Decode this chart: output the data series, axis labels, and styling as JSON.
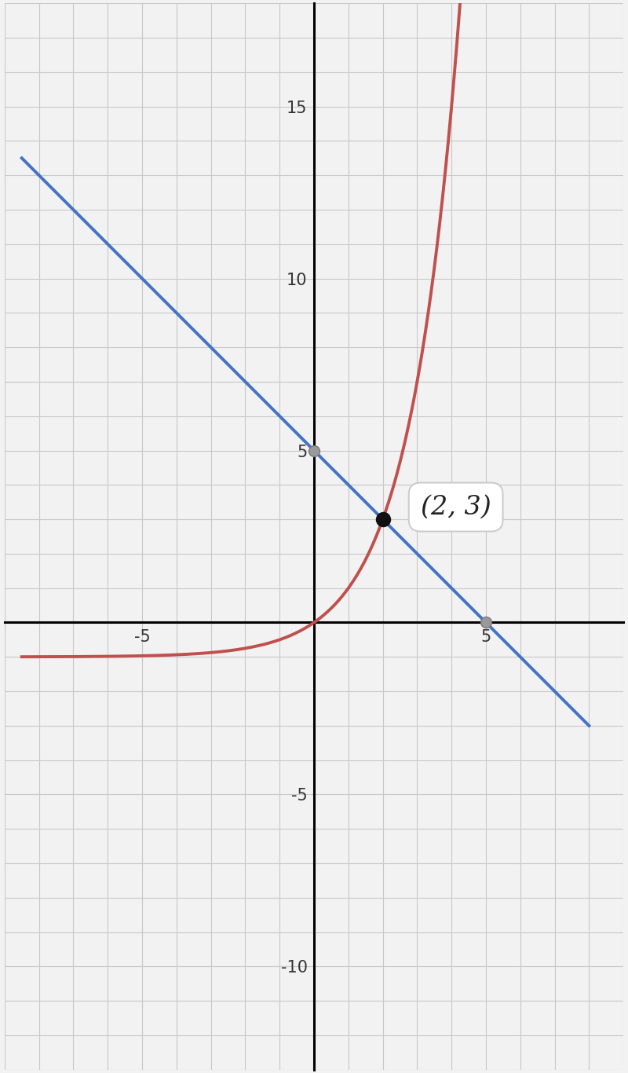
{
  "f_color": "#c0504d",
  "g_color": "#4472c4",
  "intersection_x": 2,
  "intersection_y": 3,
  "intersection_label": "(2, 3)",
  "g_yintercept_x": 0,
  "g_yintercept_y": 5,
  "g_xintercept_x": 5,
  "g_xintercept_y": 0,
  "xlim": [
    -8.5,
    8.0
  ],
  "ylim": [
    -12.5,
    17.5
  ],
  "xticks": [
    -5,
    0,
    5
  ],
  "yticks": [
    -10,
    -5,
    5,
    10,
    15
  ],
  "grid_color": "#c8c8c8",
  "background_color": "#f2f2f2",
  "axes_color": "#000000",
  "tick_fontsize": 15,
  "annotation_fontsize": 24
}
